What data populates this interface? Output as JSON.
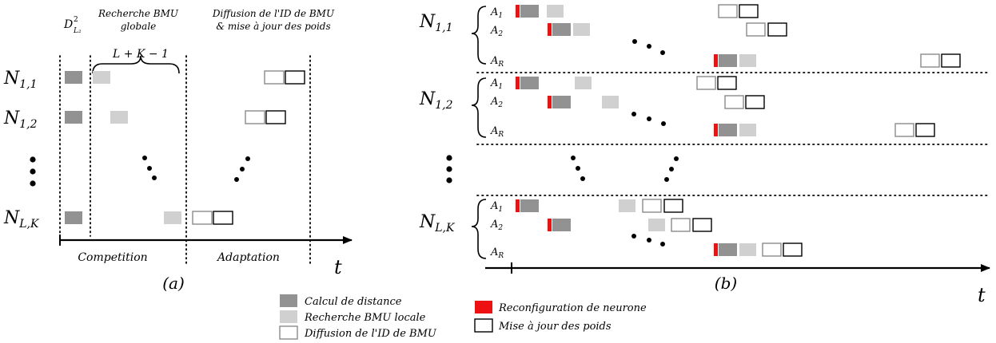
{
  "panel_a": {
    "header_distance_sym": "D",
    "header_distance_sup": "2",
    "header_distance_sub": "L₂",
    "header_global_line1": "Recherche BMU",
    "header_global_line2": "globale",
    "header_diffusion_line1": "Diffusion de l'ID de BMU",
    "header_diffusion_line2": "& mise à jour des poids",
    "brace_label": "L + K − 1",
    "rows": [
      {
        "base": "N",
        "sub": "1,1"
      },
      {
        "base": "N",
        "sub": "1,2"
      },
      {
        "base": "N",
        "sub": "L,K"
      }
    ],
    "phase_competition": "Competition",
    "phase_adaptation": "Adaptation",
    "axis_label": "t",
    "caption": "(a)"
  },
  "panel_b": {
    "groups": [
      {
        "base": "N",
        "sub": "1,1"
      },
      {
        "base": "N",
        "sub": "1,2"
      },
      {
        "base": "N",
        "sub": "L,K"
      }
    ],
    "sub_rows": [
      {
        "base": "A",
        "sub": "1"
      },
      {
        "base": "A",
        "sub": "2"
      },
      {
        "base": "A",
        "sub": "R"
      }
    ],
    "axis_label": "t",
    "caption": "(b)"
  },
  "legend": {
    "distance": "Calcul de distance",
    "local": "Recherche BMU locale",
    "diffusion": "Diffusion de l'ID de BMU",
    "reconfig": "Reconfiguration de neurone",
    "update": "Mise à jour des poids"
  },
  "colors": {
    "distance": "#929292",
    "local": "#d0d0d0",
    "reconfig": "#ee1111",
    "diffusion_border": "#8a8a8a",
    "update_border": "#000000"
  }
}
